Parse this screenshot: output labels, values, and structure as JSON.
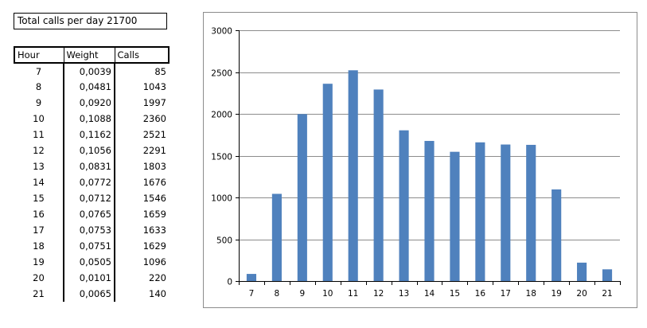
{
  "summary": {
    "total_label": "Total calls per day 21700"
  },
  "table": {
    "headers": {
      "hour": "Hour",
      "weight": "Weight",
      "calls": "Calls"
    },
    "rows": [
      {
        "hour": "7",
        "weight": "0,0039",
        "calls": "85"
      },
      {
        "hour": "8",
        "weight": "0,0481",
        "calls": "1043"
      },
      {
        "hour": "9",
        "weight": "0,0920",
        "calls": "1997"
      },
      {
        "hour": "10",
        "weight": "0,1088",
        "calls": "2360"
      },
      {
        "hour": "11",
        "weight": "0,1162",
        "calls": "2521"
      },
      {
        "hour": "12",
        "weight": "0,1056",
        "calls": "2291"
      },
      {
        "hour": "13",
        "weight": "0,0831",
        "calls": "1803"
      },
      {
        "hour": "14",
        "weight": "0,0772",
        "calls": "1676"
      },
      {
        "hour": "15",
        "weight": "0,0712",
        "calls": "1546"
      },
      {
        "hour": "16",
        "weight": "0,0765",
        "calls": "1659"
      },
      {
        "hour": "17",
        "weight": "0,0753",
        "calls": "1633"
      },
      {
        "hour": "18",
        "weight": "0,0751",
        "calls": "1629"
      },
      {
        "hour": "19",
        "weight": "0,0505",
        "calls": "1096"
      },
      {
        "hour": "20",
        "weight": "0,0101",
        "calls": "220"
      },
      {
        "hour": "21",
        "weight": "0,0065",
        "calls": "140"
      }
    ]
  },
  "chart_data": {
    "type": "bar",
    "title": "",
    "xlabel": "",
    "ylabel": "",
    "categories": [
      "7",
      "8",
      "9",
      "10",
      "11",
      "12",
      "13",
      "14",
      "15",
      "16",
      "17",
      "18",
      "19",
      "20",
      "21"
    ],
    "values": [
      85,
      1043,
      1997,
      2360,
      2521,
      2291,
      1803,
      1676,
      1546,
      1659,
      1633,
      1629,
      1096,
      220,
      140
    ],
    "ylim": [
      0,
      3000
    ],
    "yticks": [
      0,
      500,
      1000,
      1500,
      2000,
      2500,
      3000
    ],
    "grid": true,
    "legend": "none",
    "bar_color": "#4f81bd",
    "gridline_color": "#8c8c8c"
  }
}
